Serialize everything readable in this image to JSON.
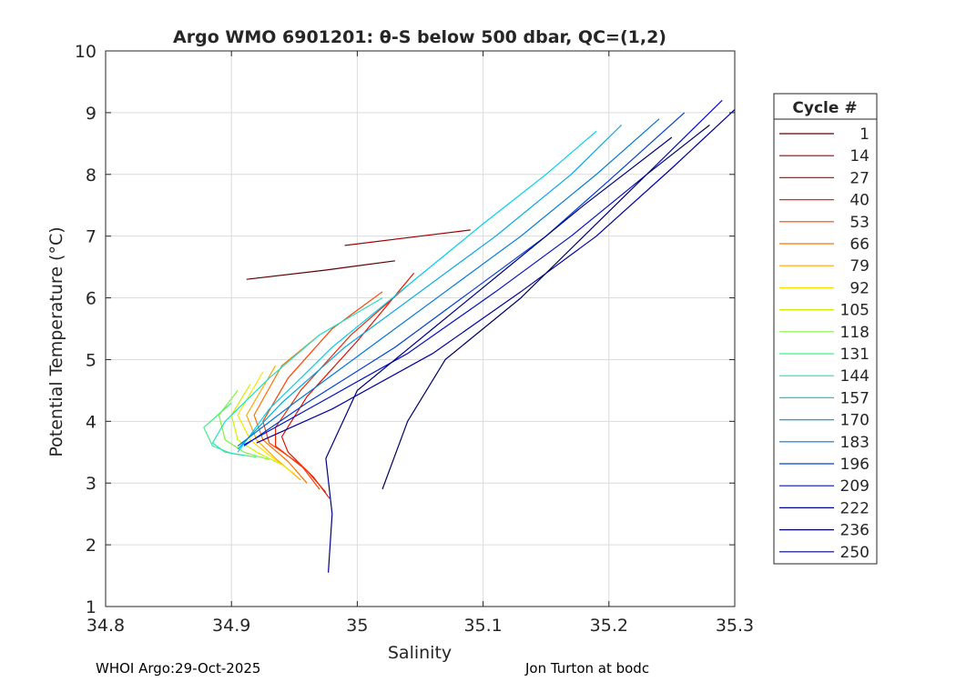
{
  "chart_data": {
    "type": "line",
    "title": "Argo WMO 6901201: θ-S below 500 dbar,  QC=(1,2)",
    "xlabel": "Salinity",
    "ylabel": "Potential Temperature (°C)",
    "xlim": [
      34.8,
      35.3
    ],
    "ylim": [
      1,
      10
    ],
    "x_ticks": [
      34.8,
      34.9,
      35,
      35.1,
      35.2,
      35.3
    ],
    "x_tick_labels": [
      "34.8",
      "34.9",
      "35",
      "35.1",
      "35.2",
      "35.3"
    ],
    "y_ticks": [
      1,
      2,
      3,
      4,
      5,
      6,
      7,
      8,
      9,
      10
    ],
    "y_tick_labels": [
      "1",
      "2",
      "3",
      "4",
      "5",
      "6",
      "7",
      "8",
      "9",
      "10"
    ],
    "grid": true,
    "legend_title": "Cycle #",
    "legend_position": "right",
    "series": [
      {
        "name": "1",
        "color": "#600000",
        "points": [
          [
            34.912,
            6.3
          ],
          [
            34.975,
            6.45
          ],
          [
            35.03,
            6.6
          ]
        ]
      },
      {
        "name": "14",
        "color": "#a00000",
        "points": [
          [
            34.99,
            6.85
          ],
          [
            35.05,
            7.0
          ],
          [
            35.09,
            7.1
          ]
        ]
      },
      {
        "name": "27",
        "color": "#e01000",
        "points": [
          [
            34.978,
            2.75
          ],
          [
            34.965,
            3.1
          ],
          [
            34.945,
            3.5
          ],
          [
            34.94,
            3.75
          ],
          [
            34.96,
            4.4
          ],
          [
            35.0,
            5.3
          ],
          [
            35.045,
            6.4
          ]
        ]
      },
      {
        "name": "40",
        "color": "#f02800",
        "points": [
          [
            34.975,
            2.85
          ],
          [
            34.96,
            3.2
          ],
          [
            34.935,
            3.6
          ],
          [
            34.935,
            3.9
          ],
          [
            34.955,
            4.5
          ],
          [
            34.995,
            5.4
          ],
          [
            35.04,
            6.2
          ]
        ]
      },
      {
        "name": "53",
        "color": "#ff4000",
        "points": [
          [
            34.97,
            2.9
          ],
          [
            34.955,
            3.3
          ],
          [
            34.93,
            3.65
          ],
          [
            34.925,
            4.0
          ],
          [
            34.945,
            4.7
          ],
          [
            34.98,
            5.5
          ],
          [
            35.02,
            6.1
          ]
        ]
      },
      {
        "name": "66",
        "color": "#ff7000",
        "points": [
          [
            34.96,
            3.0
          ],
          [
            34.945,
            3.35
          ],
          [
            34.925,
            3.7
          ],
          [
            34.918,
            4.1
          ],
          [
            34.94,
            4.9
          ],
          [
            34.97,
            5.4
          ]
        ]
      },
      {
        "name": "79",
        "color": "#ffa800",
        "points": [
          [
            34.955,
            3.05
          ],
          [
            34.935,
            3.4
          ],
          [
            34.92,
            3.7
          ],
          [
            34.912,
            4.1
          ],
          [
            34.935,
            4.9
          ]
        ]
      },
      {
        "name": "92",
        "color": "#ffe000",
        "points": [
          [
            34.95,
            3.15
          ],
          [
            34.93,
            3.45
          ],
          [
            34.915,
            3.7
          ],
          [
            34.905,
            4.1
          ],
          [
            34.925,
            4.8
          ]
        ]
      },
      {
        "name": "105",
        "color": "#d0f000",
        "points": [
          [
            34.94,
            3.3
          ],
          [
            34.92,
            3.5
          ],
          [
            34.905,
            3.7
          ],
          [
            34.9,
            4.1
          ],
          [
            34.915,
            4.6
          ]
        ]
      },
      {
        "name": "118",
        "color": "#80f040",
        "points": [
          [
            34.93,
            3.38
          ],
          [
            34.91,
            3.5
          ],
          [
            34.895,
            3.7
          ],
          [
            34.89,
            4.1
          ],
          [
            34.905,
            4.5
          ]
        ]
      },
      {
        "name": "131",
        "color": "#40f080",
        "points": [
          [
            34.92,
            3.42
          ],
          [
            34.9,
            3.48
          ],
          [
            34.885,
            3.6
          ],
          [
            34.878,
            3.9
          ],
          [
            34.9,
            4.3
          ]
        ]
      },
      {
        "name": "144",
        "color": "#20e0c0",
        "points": [
          [
            34.91,
            3.45
          ],
          [
            34.895,
            3.5
          ],
          [
            34.885,
            3.65
          ],
          [
            34.895,
            4.0
          ],
          [
            34.93,
            4.7
          ],
          [
            34.97,
            5.4
          ],
          [
            35.02,
            6.0
          ]
        ]
      },
      {
        "name": "157",
        "color": "#00d0f0",
        "points": [
          [
            34.905,
            3.5
          ],
          [
            34.93,
            4.2
          ],
          [
            34.98,
            5.2
          ],
          [
            35.04,
            6.2
          ],
          [
            35.1,
            7.2
          ],
          [
            35.15,
            8.0
          ],
          [
            35.19,
            8.7
          ]
        ]
      },
      {
        "name": "170",
        "color": "#00a8e8",
        "points": [
          [
            34.905,
            3.55
          ],
          [
            34.94,
            4.3
          ],
          [
            34.99,
            5.2
          ],
          [
            35.05,
            6.1
          ],
          [
            35.11,
            7.0
          ],
          [
            35.17,
            8.0
          ],
          [
            35.21,
            8.8
          ]
        ]
      },
      {
        "name": "183",
        "color": "#0078d8",
        "points": [
          [
            34.905,
            3.6
          ],
          [
            34.95,
            4.3
          ],
          [
            35.01,
            5.2
          ],
          [
            35.07,
            6.1
          ],
          [
            35.13,
            7.0
          ],
          [
            35.19,
            8.0
          ],
          [
            35.24,
            8.9
          ]
        ]
      },
      {
        "name": "196",
        "color": "#0040d0",
        "points": [
          [
            34.91,
            3.6
          ],
          [
            34.96,
            4.3
          ],
          [
            35.03,
            5.2
          ],
          [
            35.09,
            6.1
          ],
          [
            35.15,
            7.0
          ],
          [
            35.2,
            7.9
          ],
          [
            35.26,
            9.0
          ]
        ]
      },
      {
        "name": "209",
        "color": "#0010c0",
        "points": [
          [
            34.91,
            3.62
          ],
          [
            34.97,
            4.3
          ],
          [
            35.04,
            5.1
          ],
          [
            35.11,
            6.1
          ],
          [
            35.17,
            7.0
          ],
          [
            35.23,
            8.0
          ],
          [
            35.29,
            9.2
          ]
        ]
      },
      {
        "name": "222",
        "color": "#0000a0",
        "points": [
          [
            34.92,
            3.65
          ],
          [
            34.98,
            4.2
          ],
          [
            35.06,
            5.1
          ],
          [
            35.13,
            6.1
          ],
          [
            35.19,
            7.0
          ],
          [
            35.25,
            8.1
          ],
          [
            35.3,
            9.05
          ]
        ]
      },
      {
        "name": "236",
        "color": "#000060",
        "points": [
          [
            35.02,
            2.9
          ],
          [
            35.04,
            4.0
          ],
          [
            35.07,
            5.0
          ],
          [
            35.13,
            6.0
          ],
          [
            35.18,
            7.0
          ],
          [
            35.23,
            8.0
          ],
          [
            35.28,
            8.8
          ]
        ]
      },
      {
        "name": "250",
        "color": "#000080",
        "points": [
          [
            34.977,
            1.55
          ],
          [
            34.98,
            2.5
          ],
          [
            34.975,
            3.4
          ],
          [
            35.0,
            4.5
          ],
          [
            35.06,
            5.5
          ],
          [
            35.12,
            6.5
          ],
          [
            35.18,
            7.5
          ],
          [
            35.25,
            8.6
          ]
        ]
      }
    ]
  },
  "footer": {
    "left": "WHOI Argo:29-Oct-2025",
    "right": "Jon Turton at bodc"
  }
}
